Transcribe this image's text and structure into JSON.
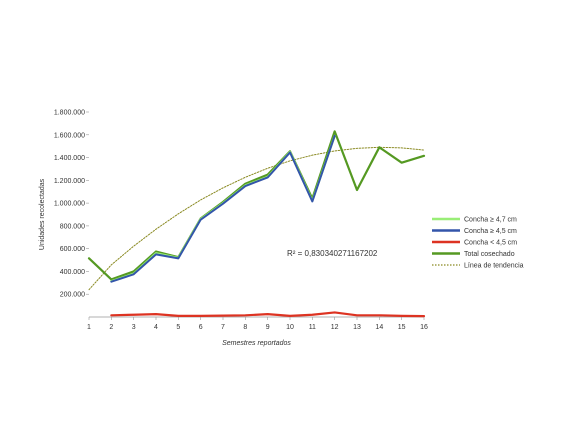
{
  "chart_data": {
    "type": "line",
    "title": "",
    "xlabel": "Semestres reportados",
    "ylabel": "Unidades recolectadas",
    "x": [
      1,
      2,
      3,
      4,
      5,
      6,
      7,
      8,
      9,
      10,
      11,
      12,
      13,
      14,
      15,
      16
    ],
    "x_tick_labels": [
      "1",
      "2",
      "3",
      "4",
      "5",
      "6",
      "7",
      "8",
      "9",
      "10",
      "11",
      "12",
      "13",
      "14",
      "15",
      "16"
    ],
    "ylim": [
      0,
      1800000
    ],
    "y_ticks": [
      200000,
      400000,
      600000,
      800000,
      1000000,
      1200000,
      1400000,
      1600000,
      1800000
    ],
    "y_tick_labels": [
      "200.000",
      "400.000",
      "600.000",
      "800.000",
      "1.000.000",
      "1.200.000",
      "1.400.000",
      "1.600.000",
      "1.800.000"
    ],
    "grid": false,
    "legend_position": "right",
    "series": [
      {
        "name": "Concha ≥ 4,7 cm",
        "color": "#99ee77",
        "values": [
          null,
          315000,
          380000,
          560000,
          520000,
          860000,
          1000000,
          1155000,
          1230000,
          1450000,
          1020000,
          1590000,
          null,
          null,
          null,
          null
        ]
      },
      {
        "name": "Concha ≥ 4,5 cm",
        "color": "#3355aa",
        "values": [
          null,
          310000,
          375000,
          550000,
          515000,
          855000,
          995000,
          1150000,
          1225000,
          1445000,
          1015000,
          1590000,
          null,
          null,
          null,
          null
        ]
      },
      {
        "name": "Concha < 4,5 cm",
        "color": "#dd3322",
        "values": [
          null,
          15000,
          20000,
          25000,
          10000,
          10000,
          12000,
          15000,
          25000,
          10000,
          20000,
          40000,
          15000,
          15000,
          10000,
          8000
        ]
      },
      {
        "name": "Total cosechado",
        "color": "#559922",
        "values": [
          515000,
          330000,
          400000,
          575000,
          525000,
          865000,
          1010000,
          1170000,
          1250000,
          1455000,
          1040000,
          1630000,
          1115000,
          1490000,
          1355000,
          1415000
        ]
      },
      {
        "name": "Línea de tendencia",
        "color": "#8a8a22",
        "values": [
          240000,
          458000,
          622000,
          771000,
          906000,
          1028000,
          1134000,
          1227000,
          1306000,
          1371000,
          1421000,
          1458000,
          1481000,
          1490000,
          1485000,
          1466000
        ],
        "style": "dotted"
      }
    ],
    "annotations": [
      {
        "text": "R² = 0,830340271167202"
      }
    ]
  }
}
